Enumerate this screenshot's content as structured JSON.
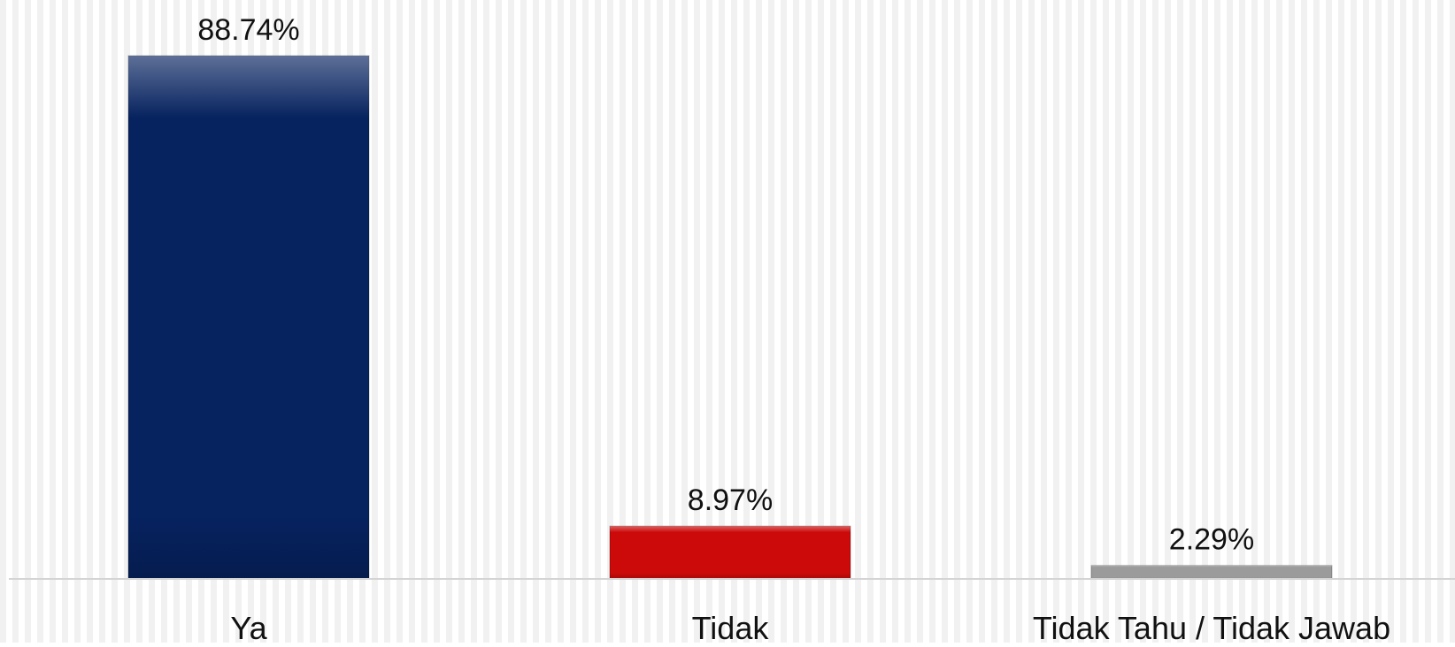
{
  "chart_data": {
    "type": "bar",
    "categories": [
      "Ya",
      "Tidak",
      "Tidak Tahu / Tidak Jawab"
    ],
    "values": [
      88.74,
      8.97,
      2.29
    ],
    "data_labels": [
      "88.74%",
      "8.97%",
      "2.29%"
    ],
    "bar_colors": [
      "#06225f",
      "#cc0a0a",
      "#9b9b9b"
    ],
    "title": "",
    "xlabel": "",
    "ylabel": "",
    "ylim": [
      0,
      100
    ],
    "grid": false,
    "legend": "none",
    "background": "vertical stripes"
  }
}
